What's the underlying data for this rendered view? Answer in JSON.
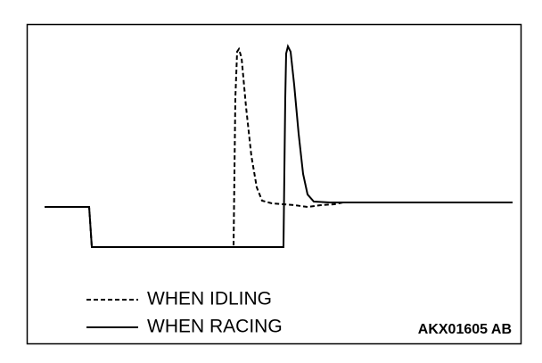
{
  "legend": {
    "items": [
      {
        "label": "WHEN IDLING"
      },
      {
        "label": "WHEN RACING"
      }
    ]
  },
  "figure_code": "AKX01605 AB"
}
